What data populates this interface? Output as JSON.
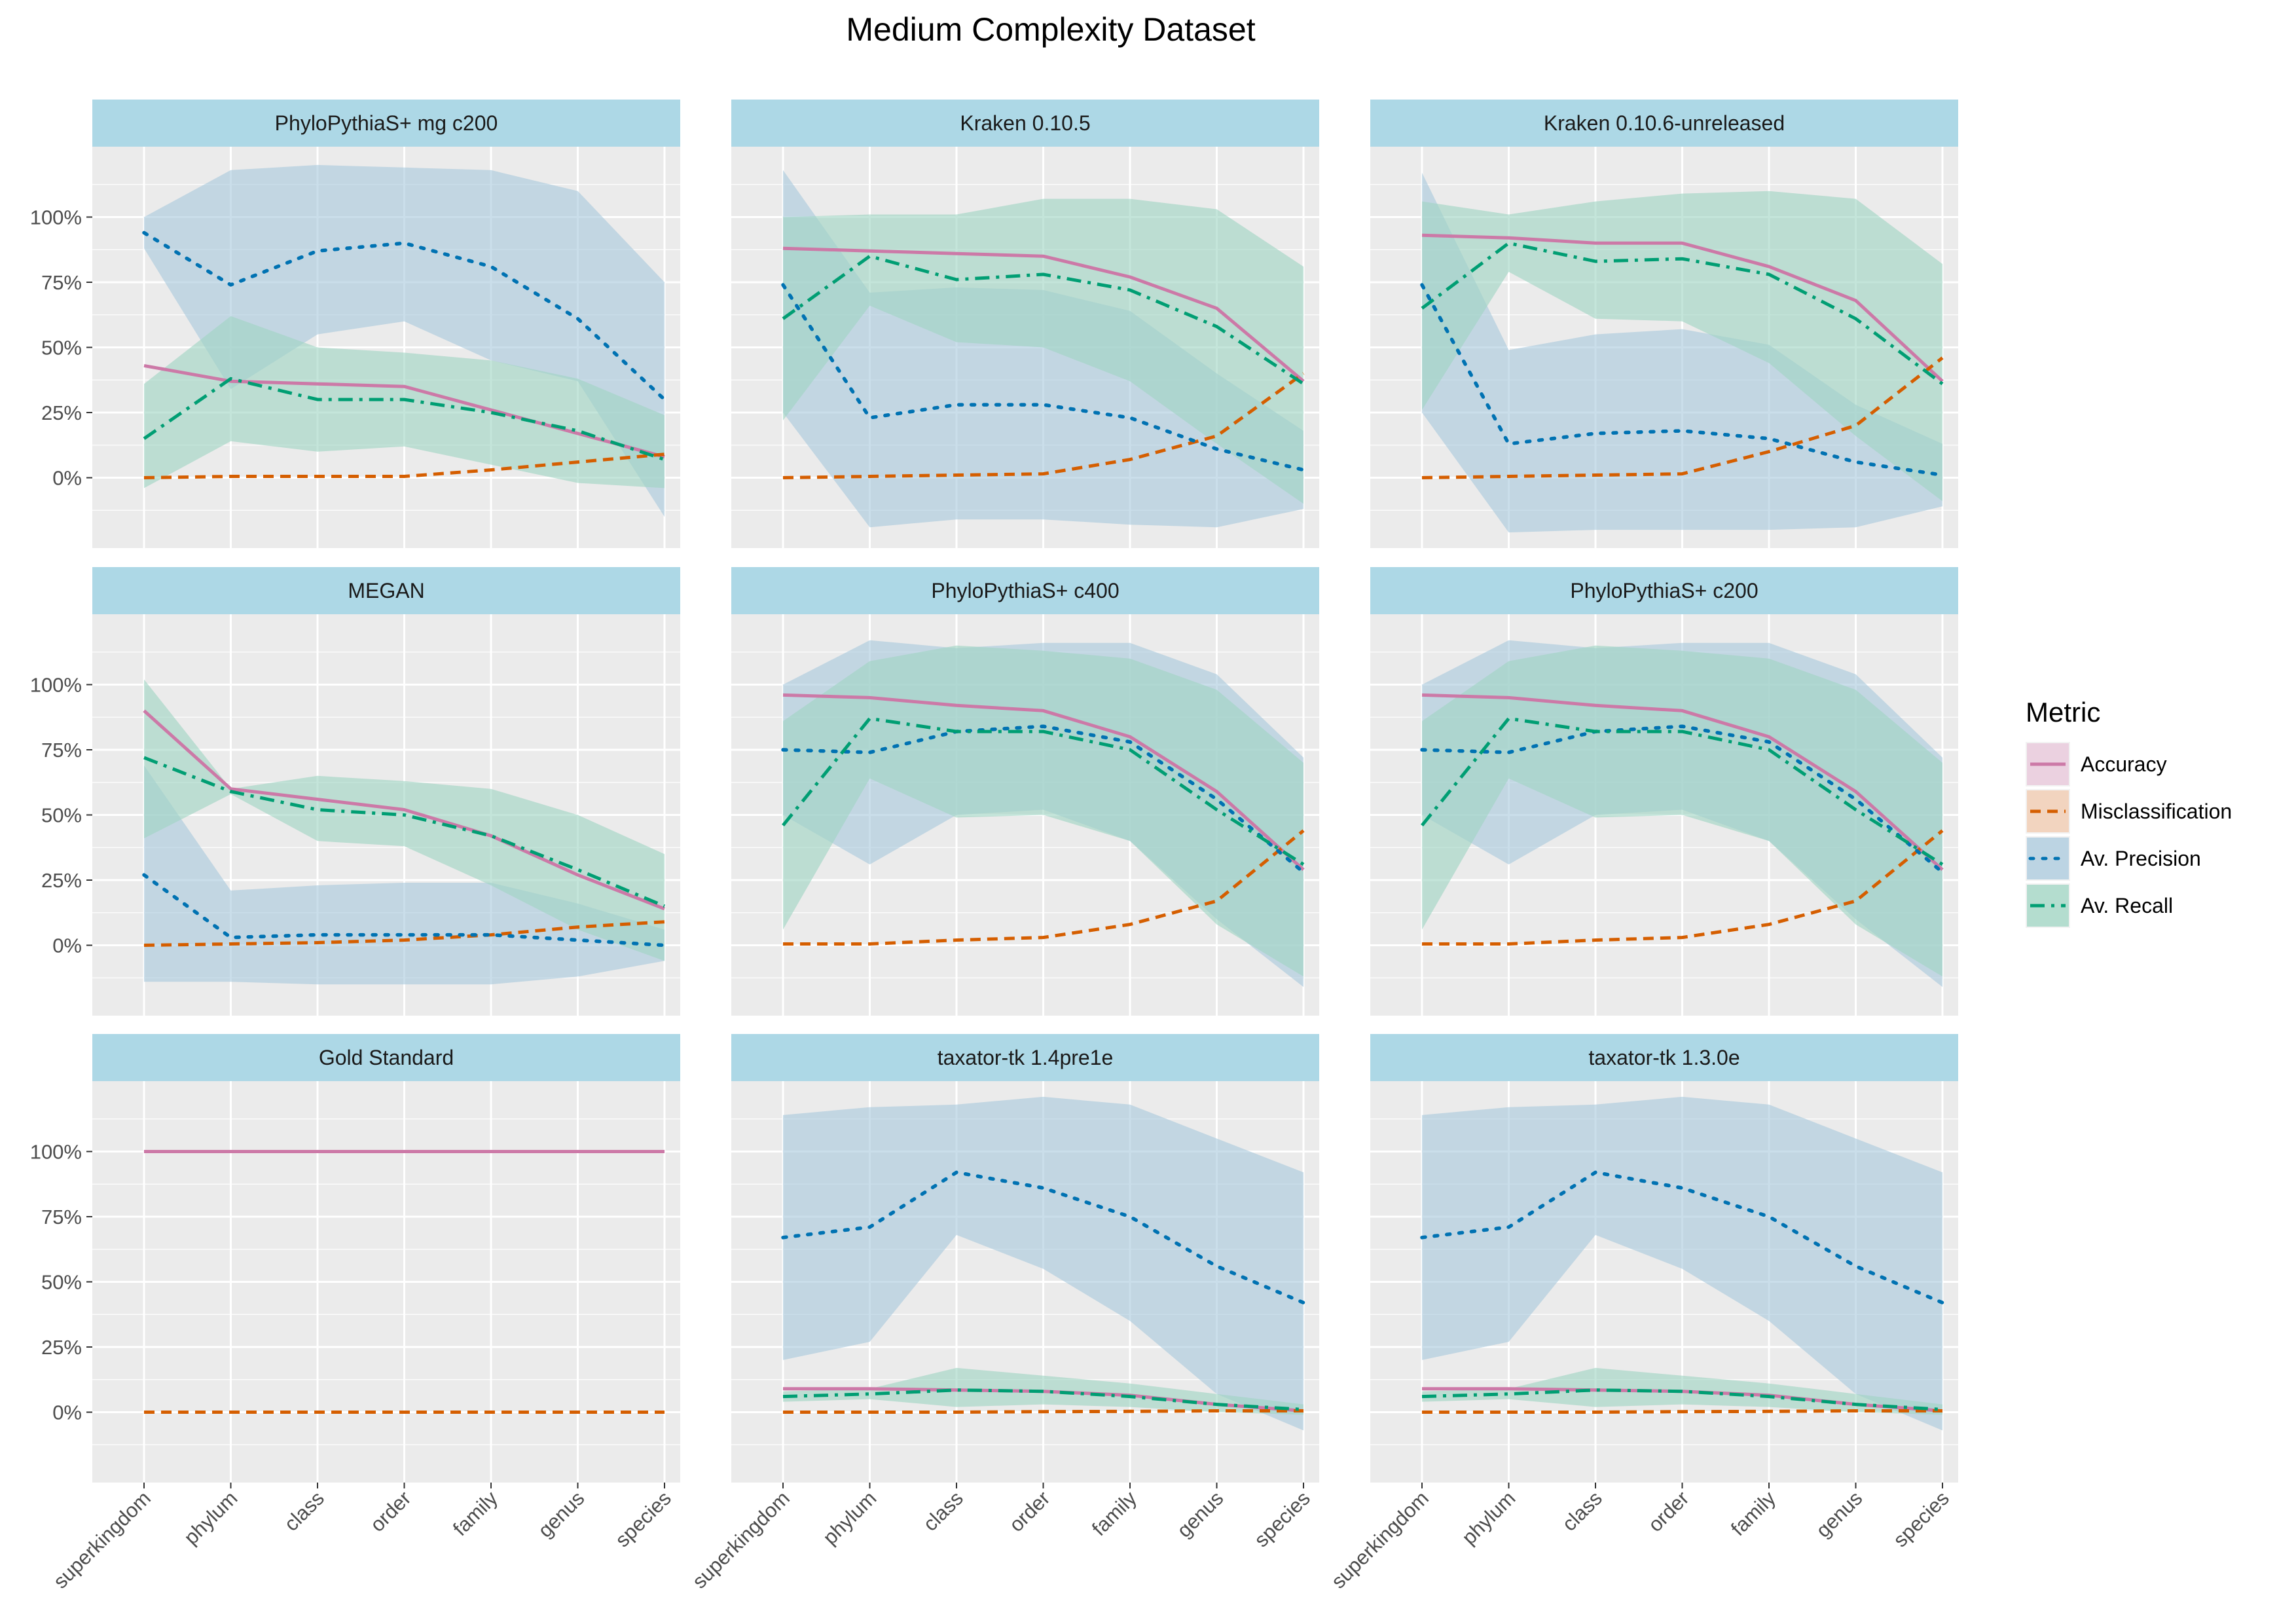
{
  "colors": {
    "Accuracy": "#cc79a7",
    "Misclassification": "#d55e00",
    "Av. Precision": "#0072b2",
    "Av. Recall": "#009e73",
    "Accuracy_fill": "#e8c5da",
    "Misclassification_fill": "#f2c9ad",
    "Av. Precision_fill": "#a9c9dd",
    "Av. Recall_fill": "#9fd5c3",
    "panel_bg": "#ebebeb",
    "strip_bg": "#add8e6",
    "grid": "#ffffff"
  },
  "chart_data": {
    "type": "line",
    "title": "Medium Complexity Dataset",
    "x": [
      "superkingdom",
      "phylum",
      "class",
      "order",
      "family",
      "genus",
      "species"
    ],
    "y_ticks": [
      "0%",
      "25%",
      "50%",
      "75%",
      "100%"
    ],
    "y_tick_values": [
      0,
      25,
      50,
      75,
      100
    ],
    "ylim": [
      -27,
      127
    ],
    "grid": true,
    "legend": {
      "title": "Metric",
      "position": "right",
      "entries": [
        "Accuracy",
        "Misclassification",
        "Av. Precision",
        "Av. Recall"
      ]
    },
    "panels": [
      {
        "name": "PhyloPythiaS+ mg c200",
        "series": [
          {
            "name": "Accuracy",
            "values": [
              43,
              37,
              36,
              35,
              26,
              17,
              8
            ],
            "lower": null,
            "upper": null
          },
          {
            "name": "Misclassification",
            "values": [
              0,
              0.5,
              0.5,
              0.5,
              3,
              6,
              9
            ],
            "lower": null,
            "upper": null
          },
          {
            "name": "Av. Precision",
            "values": [
              94,
              74,
              87,
              90,
              81,
              61,
              30
            ],
            "lower": [
              88,
              34,
              55,
              60,
              45,
              37,
              -15
            ],
            "upper": [
              100,
              118,
              120,
              119,
              118,
              110,
              75
            ]
          },
          {
            "name": "Av. Recall",
            "values": [
              15,
              38,
              30,
              30,
              25,
              18,
              7
            ],
            "lower": [
              -4,
              14,
              10,
              12,
              5,
              -2,
              -4
            ],
            "upper": [
              36,
              62,
              50,
              48,
              45,
              38,
              24
            ]
          }
        ]
      },
      {
        "name": "Kraken 0.10.5",
        "series": [
          {
            "name": "Accuracy",
            "values": [
              88,
              87,
              86,
              85,
              77,
              65,
              37
            ],
            "lower": null,
            "upper": null
          },
          {
            "name": "Misclassification",
            "values": [
              0,
              0.5,
              1,
              1.5,
              7,
              16,
              40
            ],
            "lower": null,
            "upper": null
          },
          {
            "name": "Av. Precision",
            "values": [
              74,
              23,
              28,
              28,
              23,
              11,
              3
            ],
            "lower": [
              25,
              -19,
              -16,
              -16,
              -18,
              -19,
              -12
            ],
            "upper": [
              118,
              71,
              73,
              72,
              64,
              40,
              18
            ]
          },
          {
            "name": "Av. Recall",
            "values": [
              61,
              85,
              76,
              78,
              72,
              58,
              36
            ],
            "lower": [
              22,
              66,
              52,
              50,
              37,
              13,
              -10
            ],
            "upper": [
              100,
              101,
              101,
              107,
              107,
              103,
              81
            ]
          }
        ]
      },
      {
        "name": "Kraken 0.10.6-unreleased",
        "series": [
          {
            "name": "Accuracy",
            "values": [
              93,
              92,
              90,
              90,
              81,
              68,
              37
            ],
            "lower": null,
            "upper": null
          },
          {
            "name": "Misclassification",
            "values": [
              0,
              0.5,
              1,
              1.5,
              10,
              20,
              46
            ],
            "lower": null,
            "upper": null
          },
          {
            "name": "Av. Precision",
            "values": [
              74,
              13,
              17,
              18,
              15,
              6,
              1
            ],
            "lower": [
              25,
              -21,
              -20,
              -20,
              -20,
              -19,
              -11
            ],
            "upper": [
              117,
              49,
              55,
              57,
              51,
              28,
              13
            ]
          },
          {
            "name": "Av. Recall",
            "values": [
              65,
              90,
              83,
              84,
              78,
              61,
              36
            ],
            "lower": [
              26,
              79,
              61,
              60,
              44,
              16,
              -9
            ],
            "upper": [
              106,
              101,
              106,
              109,
              110,
              107,
              82
            ]
          }
        ]
      },
      {
        "name": "MEGAN",
        "series": [
          {
            "name": "Accuracy",
            "values": [
              90,
              60,
              56,
              52,
              42,
              27,
              14
            ],
            "lower": null,
            "upper": null
          },
          {
            "name": "Misclassification",
            "values": [
              0,
              0.5,
              1,
              2,
              4,
              7,
              9
            ],
            "lower": null,
            "upper": null
          },
          {
            "name": "Av. Precision",
            "values": [
              27,
              3,
              4,
              4,
              4,
              2,
              0
            ],
            "lower": [
              -14,
              -14,
              -15,
              -15,
              -15,
              -12,
              -6
            ],
            "upper": [
              69,
              21,
              23,
              24,
              24,
              16,
              6
            ]
          },
          {
            "name": "Av. Recall",
            "values": [
              72,
              59,
              52,
              50,
              42,
              29,
              15
            ],
            "lower": [
              41,
              58,
              40,
              38,
              23,
              6,
              -6
            ],
            "upper": [
              102,
              60,
              65,
              63,
              60,
              50,
              35
            ]
          }
        ]
      },
      {
        "name": "PhyloPythiaS+ c400",
        "series": [
          {
            "name": "Accuracy",
            "values": [
              96,
              95,
              92,
              90,
              80,
              59,
              29
            ],
            "lower": null,
            "upper": null
          },
          {
            "name": "Misclassification",
            "values": [
              0.5,
              0.5,
              2,
              3,
              8,
              17,
              44
            ],
            "lower": null,
            "upper": null
          },
          {
            "name": "Av. Precision",
            "values": [
              75,
              74,
              82,
              84,
              78,
              56,
              28
            ],
            "lower": [
              50,
              31,
              50,
              52,
              40,
              10,
              -16
            ],
            "upper": [
              100,
              117,
              114,
              116,
              116,
              104,
              72
            ]
          },
          {
            "name": "Av. Recall",
            "values": [
              46,
              87,
              82,
              82,
              75,
              52,
              31
            ],
            "lower": [
              6,
              64,
              49,
              50,
              40,
              8,
              -12
            ],
            "upper": [
              86,
              109,
              115,
              113,
              110,
              98,
              70
            ]
          }
        ]
      },
      {
        "name": "PhyloPythiaS+ c200",
        "series": [
          {
            "name": "Accuracy",
            "values": [
              96,
              95,
              92,
              90,
              80,
              59,
              29
            ],
            "lower": null,
            "upper": null
          },
          {
            "name": "Misclassification",
            "values": [
              0.5,
              0.5,
              2,
              3,
              8,
              17,
              44
            ],
            "lower": null,
            "upper": null
          },
          {
            "name": "Av. Precision",
            "values": [
              75,
              74,
              82,
              84,
              78,
              56,
              28
            ],
            "lower": [
              50,
              31,
              50,
              52,
              40,
              10,
              -16
            ],
            "upper": [
              100,
              117,
              114,
              116,
              116,
              104,
              72
            ]
          },
          {
            "name": "Av. Recall",
            "values": [
              46,
              87,
              82,
              82,
              75,
              52,
              31
            ],
            "lower": [
              6,
              64,
              49,
              50,
              40,
              8,
              -12
            ],
            "upper": [
              86,
              109,
              115,
              113,
              110,
              98,
              70
            ]
          }
        ]
      },
      {
        "name": "Gold Standard",
        "series": [
          {
            "name": "Accuracy",
            "values": [
              100,
              100,
              100,
              100,
              100,
              100,
              100
            ],
            "lower": null,
            "upper": null
          },
          {
            "name": "Misclassification",
            "values": [
              0,
              0,
              0,
              0,
              0,
              0,
              0
            ],
            "lower": null,
            "upper": null
          }
        ]
      },
      {
        "name": "taxator-tk 1.4pre1e",
        "series": [
          {
            "name": "Accuracy",
            "values": [
              9,
              9,
              8.5,
              8,
              6.5,
              3,
              0.5
            ],
            "lower": null,
            "upper": null
          },
          {
            "name": "Misclassification",
            "values": [
              0,
              0,
              0,
              0.2,
              0.3,
              0.5,
              0.5
            ],
            "lower": null,
            "upper": null
          },
          {
            "name": "Av. Precision",
            "values": [
              67,
              71,
              92,
              86,
              75,
              56,
              42
            ],
            "lower": [
              20,
              27,
              68,
              55,
              35,
              7,
              -7
            ],
            "upper": [
              114,
              117,
              118,
              121,
              118,
              105,
              92
            ]
          },
          {
            "name": "Av. Recall",
            "values": [
              6,
              7,
              8.5,
              8,
              6,
              3,
              1
            ],
            "lower": [
              4,
              5,
              2,
              3,
              2,
              0,
              -1
            ],
            "upper": [
              8,
              9,
              17,
              14,
              11,
              7,
              3
            ]
          }
        ]
      },
      {
        "name": "taxator-tk 1.3.0e",
        "series": [
          {
            "name": "Accuracy",
            "values": [
              9,
              9,
              8.5,
              8,
              6.5,
              3,
              0.5
            ],
            "lower": null,
            "upper": null
          },
          {
            "name": "Misclassification",
            "values": [
              0,
              0,
              0,
              0.2,
              0.3,
              0.5,
              0.5
            ],
            "lower": null,
            "upper": null
          },
          {
            "name": "Av. Precision",
            "values": [
              67,
              71,
              92,
              86,
              75,
              56,
              42
            ],
            "lower": [
              20,
              27,
              68,
              55,
              35,
              7,
              -7
            ],
            "upper": [
              114,
              117,
              118,
              121,
              118,
              105,
              92
            ]
          },
          {
            "name": "Av. Recall",
            "values": [
              6,
              7,
              8.5,
              8,
              6,
              3,
              1
            ],
            "lower": [
              4,
              5,
              2,
              3,
              2,
              0,
              -1
            ],
            "upper": [
              8,
              9,
              17,
              14,
              11,
              7,
              3
            ]
          }
        ]
      }
    ]
  }
}
